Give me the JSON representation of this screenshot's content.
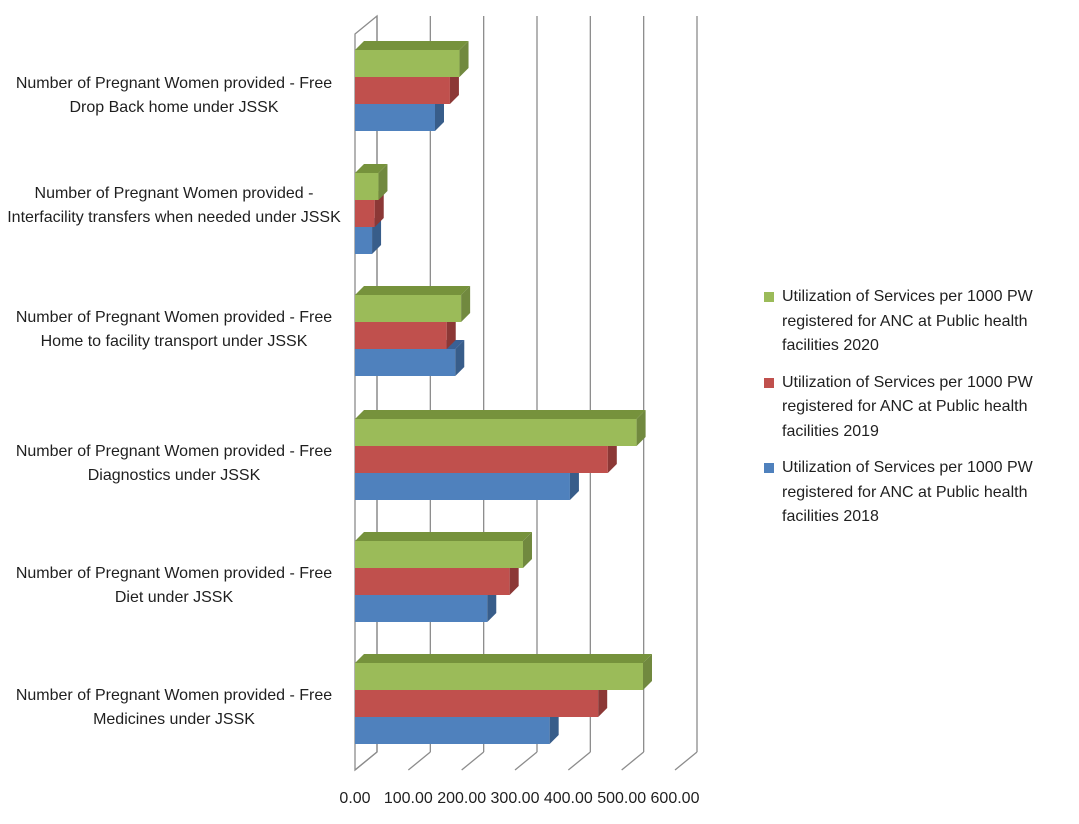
{
  "chart_data": {
    "type": "bar",
    "orientation": "horizontal",
    "style": "3d-clustered",
    "categories": [
      "Number of Pregnant Women provided - Free Medicines under JSSK",
      "Number of Pregnant Women provided - Free Diet under JSSK",
      "Number of Pregnant Women provided - Free Diagnostics under JSSK",
      "Number of Pregnant Women provided - Free Home to facility transport under JSSK",
      "Number of Pregnant Women provided - Interfacility transfers when needed under JSSK",
      "Number of Pregnant Women provided - Free Drop Back home under JSSK"
    ],
    "series": [
      {
        "name": "Utilization of Services per 1000 PW registered for ANC at Public health facilities 2018",
        "color": "#4F81BD",
        "side_color": "#385D8A",
        "top_color": "#3A6195",
        "values": [
          365,
          248,
          403,
          188,
          32,
          150
        ]
      },
      {
        "name": "Utilization of Services per 1000 PW registered for ANC at Public health facilities 2019",
        "color": "#C0504D",
        "side_color": "#8C3836",
        "top_color": "#9B3B38",
        "values": [
          456,
          290,
          474,
          172,
          37,
          178
        ]
      },
      {
        "name": "Utilization of Services per 1000 PW registered for ANC at Public health facilities 2020",
        "color": "#9BBB59",
        "side_color": "#71893F",
        "top_color": "#76923C",
        "values": [
          540,
          315,
          528,
          199,
          44,
          196
        ]
      }
    ],
    "xlim": [
      0,
      600
    ],
    "xticks": [
      "0.00",
      "100.00",
      "200.00",
      "300.00",
      "400.00",
      "500.00",
      "600.00"
    ],
    "grid": true,
    "legend_position": "right"
  }
}
